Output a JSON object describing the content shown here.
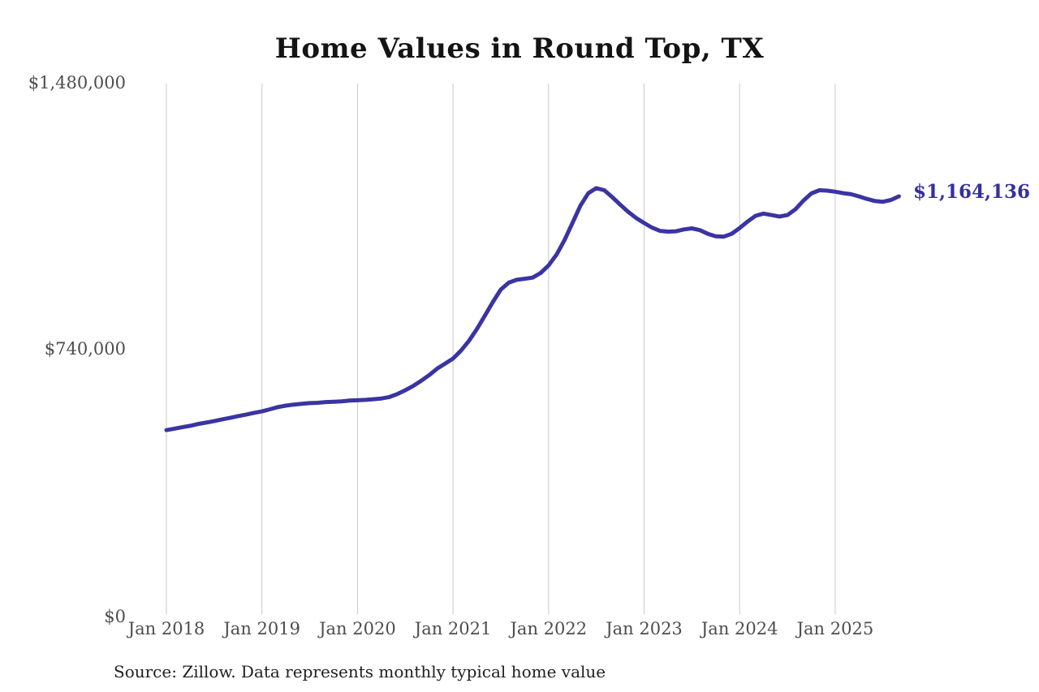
{
  "chart_data": {
    "type": "line",
    "title": "Home Values in Round Top, TX",
    "series_name": "Monthly typical home value",
    "source_note": "Source: Zillow. Data represents monthly typical home value",
    "end_label": "$1,164,136",
    "end_value": 1164136,
    "line_color": "#3a34a3",
    "grid_color": "#c9c9c9",
    "tick_label_color": "#4d4d4d",
    "end_label_color": "#33309e",
    "ylim": [
      0,
      1480000
    ],
    "grid": "vertical-only",
    "legend": "none",
    "y_ticks": [
      {
        "value": 1480000,
        "label": "$1,480,000"
      },
      {
        "value": 740000,
        "label": "$740,000"
      },
      {
        "value": 0,
        "label": "$0"
      }
    ],
    "x_ticks": [
      {
        "month_index": 0,
        "label": "Jan 2018"
      },
      {
        "month_index": 12,
        "label": "Jan 2019"
      },
      {
        "month_index": 24,
        "label": "Jan 2020"
      },
      {
        "month_index": 36,
        "label": "Jan 2021"
      },
      {
        "month_index": 48,
        "label": "Jan 2022"
      },
      {
        "month_index": 60,
        "label": "Jan 2023"
      },
      {
        "month_index": 72,
        "label": "Jan 2024"
      },
      {
        "month_index": 84,
        "label": "Jan 2025"
      }
    ],
    "x_start": "Jan 2018",
    "x_end": "Sep 2025",
    "x_step": "1 month",
    "values": [
      514000,
      518000,
      522000,
      526000,
      531000,
      535000,
      539000,
      544000,
      548000,
      553000,
      557000,
      562000,
      566000,
      572000,
      578000,
      582000,
      585000,
      587000,
      589000,
      590000,
      592000,
      593000,
      594000,
      596000,
      597000,
      598000,
      600000,
      602000,
      606000,
      614000,
      625000,
      637000,
      651000,
      667000,
      685000,
      699000,
      713000,
      735000,
      762000,
      795000,
      832000,
      870000,
      905000,
      924000,
      932000,
      935000,
      938000,
      951000,
      972000,
      1002000,
      1042000,
      1090000,
      1138000,
      1173000,
      1187000,
      1181000,
      1162000,
      1141000,
      1121000,
      1104000,
      1090000,
      1077000,
      1068000,
      1066000,
      1067000,
      1072000,
      1075000,
      1070000,
      1060000,
      1053000,
      1052000,
      1060000,
      1076000,
      1094000,
      1110000,
      1116000,
      1112000,
      1108000,
      1112000,
      1128000,
      1152000,
      1172000,
      1181000,
      1180000,
      1177000,
      1173000,
      1170000,
      1164000,
      1157000,
      1151000,
      1149000,
      1154000,
      1164136
    ]
  }
}
